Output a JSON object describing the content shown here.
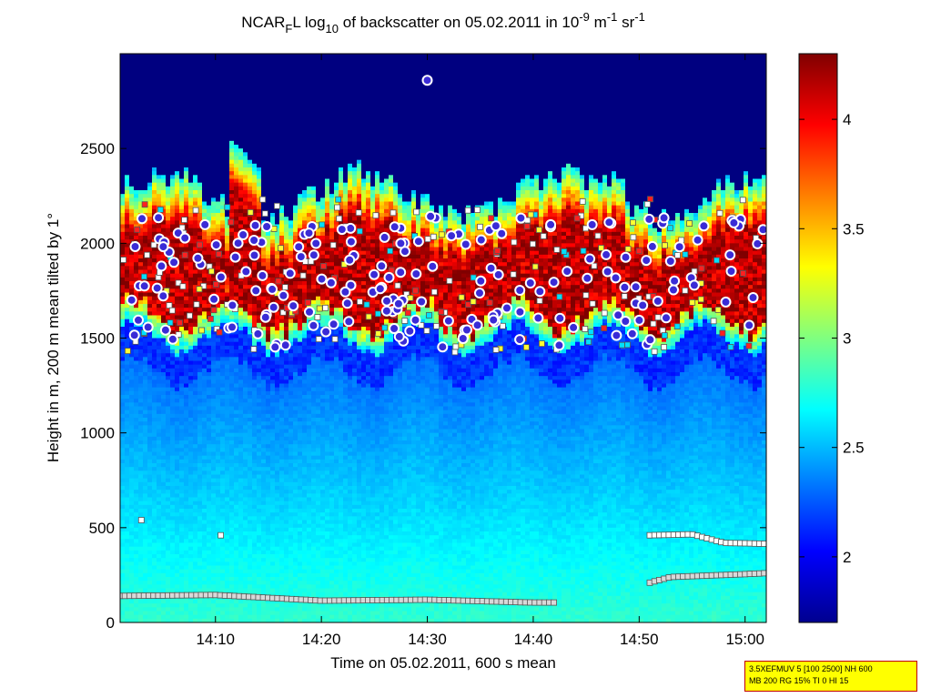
{
  "chart_data": {
    "type": "heatmap",
    "title_parts": {
      "pre": "NCAR",
      "sub1": "F",
      "mid": "L log",
      "sub2": "10",
      "post": " of backscatter on 05.02.2011 in 10",
      "sup1": "-9",
      "unit": " m",
      "sup2": "-1",
      "unit2": " sr",
      "sup3": "-1"
    },
    "xlabel": "Time on 05.02.2011, 600 s mean",
    "ylabel": "Height in m, 200 m mean tilted by 1°",
    "x_ticks": [
      "14:10",
      "14:20",
      "14:30",
      "14:40",
      "14:50",
      "15:00"
    ],
    "x_tick_minutes": [
      10,
      20,
      30,
      40,
      50,
      60
    ],
    "xlim_minutes": [
      1,
      62
    ],
    "y_ticks": [
      0,
      500,
      1000,
      1500,
      2000,
      2500
    ],
    "ylim": [
      0,
      3000
    ],
    "colorbar": {
      "ticks": [
        "2",
        "2.5",
        "3",
        "3.5",
        "4"
      ],
      "tick_values": [
        2,
        2.5,
        3,
        3.5,
        4
      ],
      "range": [
        1.7,
        4.3
      ],
      "colormap": "jet"
    },
    "annotation": {
      "line1": "3.5XEFMUV 5 [100 2500] NH 600",
      "line2": "MB 200 RG 15% TI 0 HI 15"
    },
    "layers": {
      "cloud_base_m": 1500,
      "cloud_top_m": 2250,
      "upper_plume_top_m": 2550,
      "boundary_layer_m": [
        [
          1,
          140
        ],
        [
          10,
          145
        ],
        [
          20,
          115
        ],
        [
          30,
          120
        ],
        [
          40,
          105
        ],
        [
          42,
          105
        ],
        [
          51,
          210
        ],
        [
          53,
          240
        ],
        [
          60,
          255
        ],
        [
          62,
          260
        ]
      ],
      "secondary_layer_m": [
        [
          51,
          460
        ],
        [
          55,
          465
        ],
        [
          58,
          420
        ],
        [
          62,
          415
        ]
      ]
    },
    "colors": {
      "circle_edge": "#ffffff",
      "circle_fill": "#3a2bd6",
      "square_edge": "#555555"
    }
  }
}
